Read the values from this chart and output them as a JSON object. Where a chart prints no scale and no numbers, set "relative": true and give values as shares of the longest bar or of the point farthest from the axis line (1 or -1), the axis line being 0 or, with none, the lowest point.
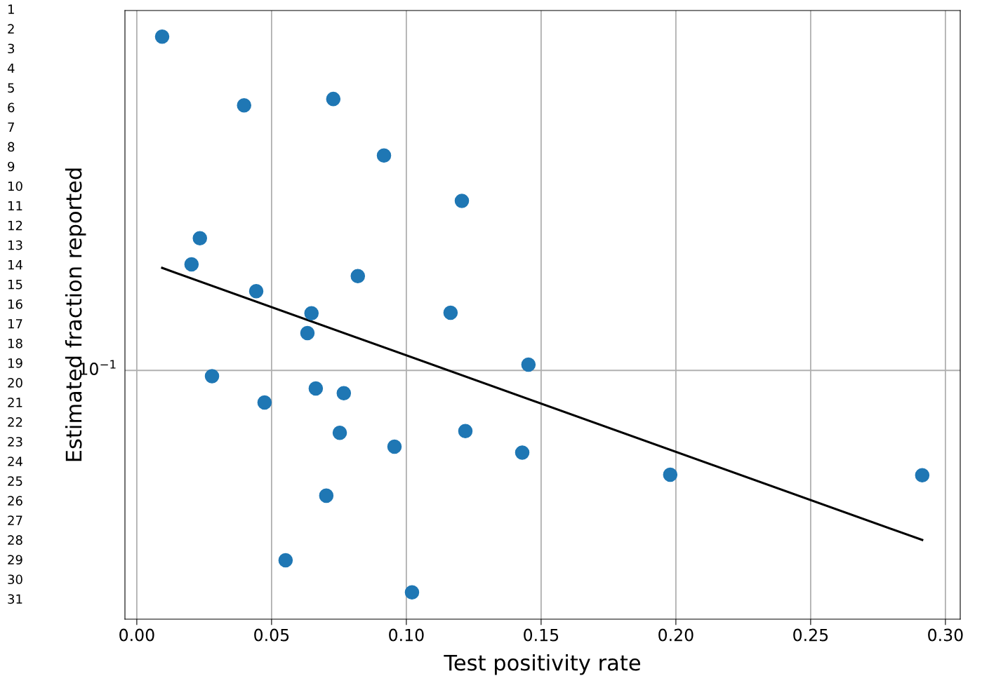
{
  "chart_data": {
    "type": "scatter",
    "xlabel": "Test positivity rate",
    "ylabel": "Estimated fraction reported",
    "relative": true,
    "grid": "x",
    "xlim": [
      -0.0044,
      0.3055
    ],
    "xticks": [
      {
        "value": 0,
        "label": "0.00"
      },
      {
        "value": 0.05,
        "label": "0.05"
      },
      {
        "value": 0.1,
        "label": "0.10"
      },
      {
        "value": 0.15,
        "label": "0.15"
      },
      {
        "value": 0.2,
        "label": "0.20"
      },
      {
        "value": 0.25,
        "label": "0.25"
      },
      {
        "value": 0.3,
        "label": "0.30"
      }
    ],
    "ref_lines": [
      {
        "axis": "y",
        "value": 0.427,
        "label": "10$^{−1}$",
        "color": "#b0b0b0"
      }
    ],
    "series": [
      {
        "color": "#1f77b4",
        "marker": "circle",
        "x": [
          0.0094,
          0.0398,
          0.0729,
          0.0917,
          0.1206,
          0.0234,
          0.0203,
          0.082,
          0.0443,
          0.0648,
          0.1164,
          0.0633,
          0.1453,
          0.0279,
          0.0664,
          0.0768,
          0.0474,
          0.0753,
          0.1219,
          0.0956,
          0.143,
          0.1979,
          0.2914,
          0.0703,
          0.0552,
          0.1021
        ],
        "values": [
          1,
          0.882,
          0.893,
          0.796,
          0.718,
          0.654,
          0.609,
          0.589,
          0.563,
          0.525,
          0.526,
          0.491,
          0.437,
          0.417,
          0.396,
          0.388,
          0.372,
          0.32,
          0.323,
          0.296,
          0.286,
          0.248,
          0.247,
          0.212,
          0.101,
          0.046
        ]
      },
      {
        "type": "line",
        "color": "#000000",
        "x": [
          0.0094,
          0.2914
        ],
        "values": [
          0.603,
          0.136
        ]
      }
    ],
    "annotations": [
      "1\n2\n3\n4\n5\n6\n7\n8\n9\n10\n11\n12\n13\n14\n15\n16\n17\n18\n19\n20\n21\n22\n23\n24\n25\n26\n27\n28\n29\n30\n31"
    ]
  }
}
